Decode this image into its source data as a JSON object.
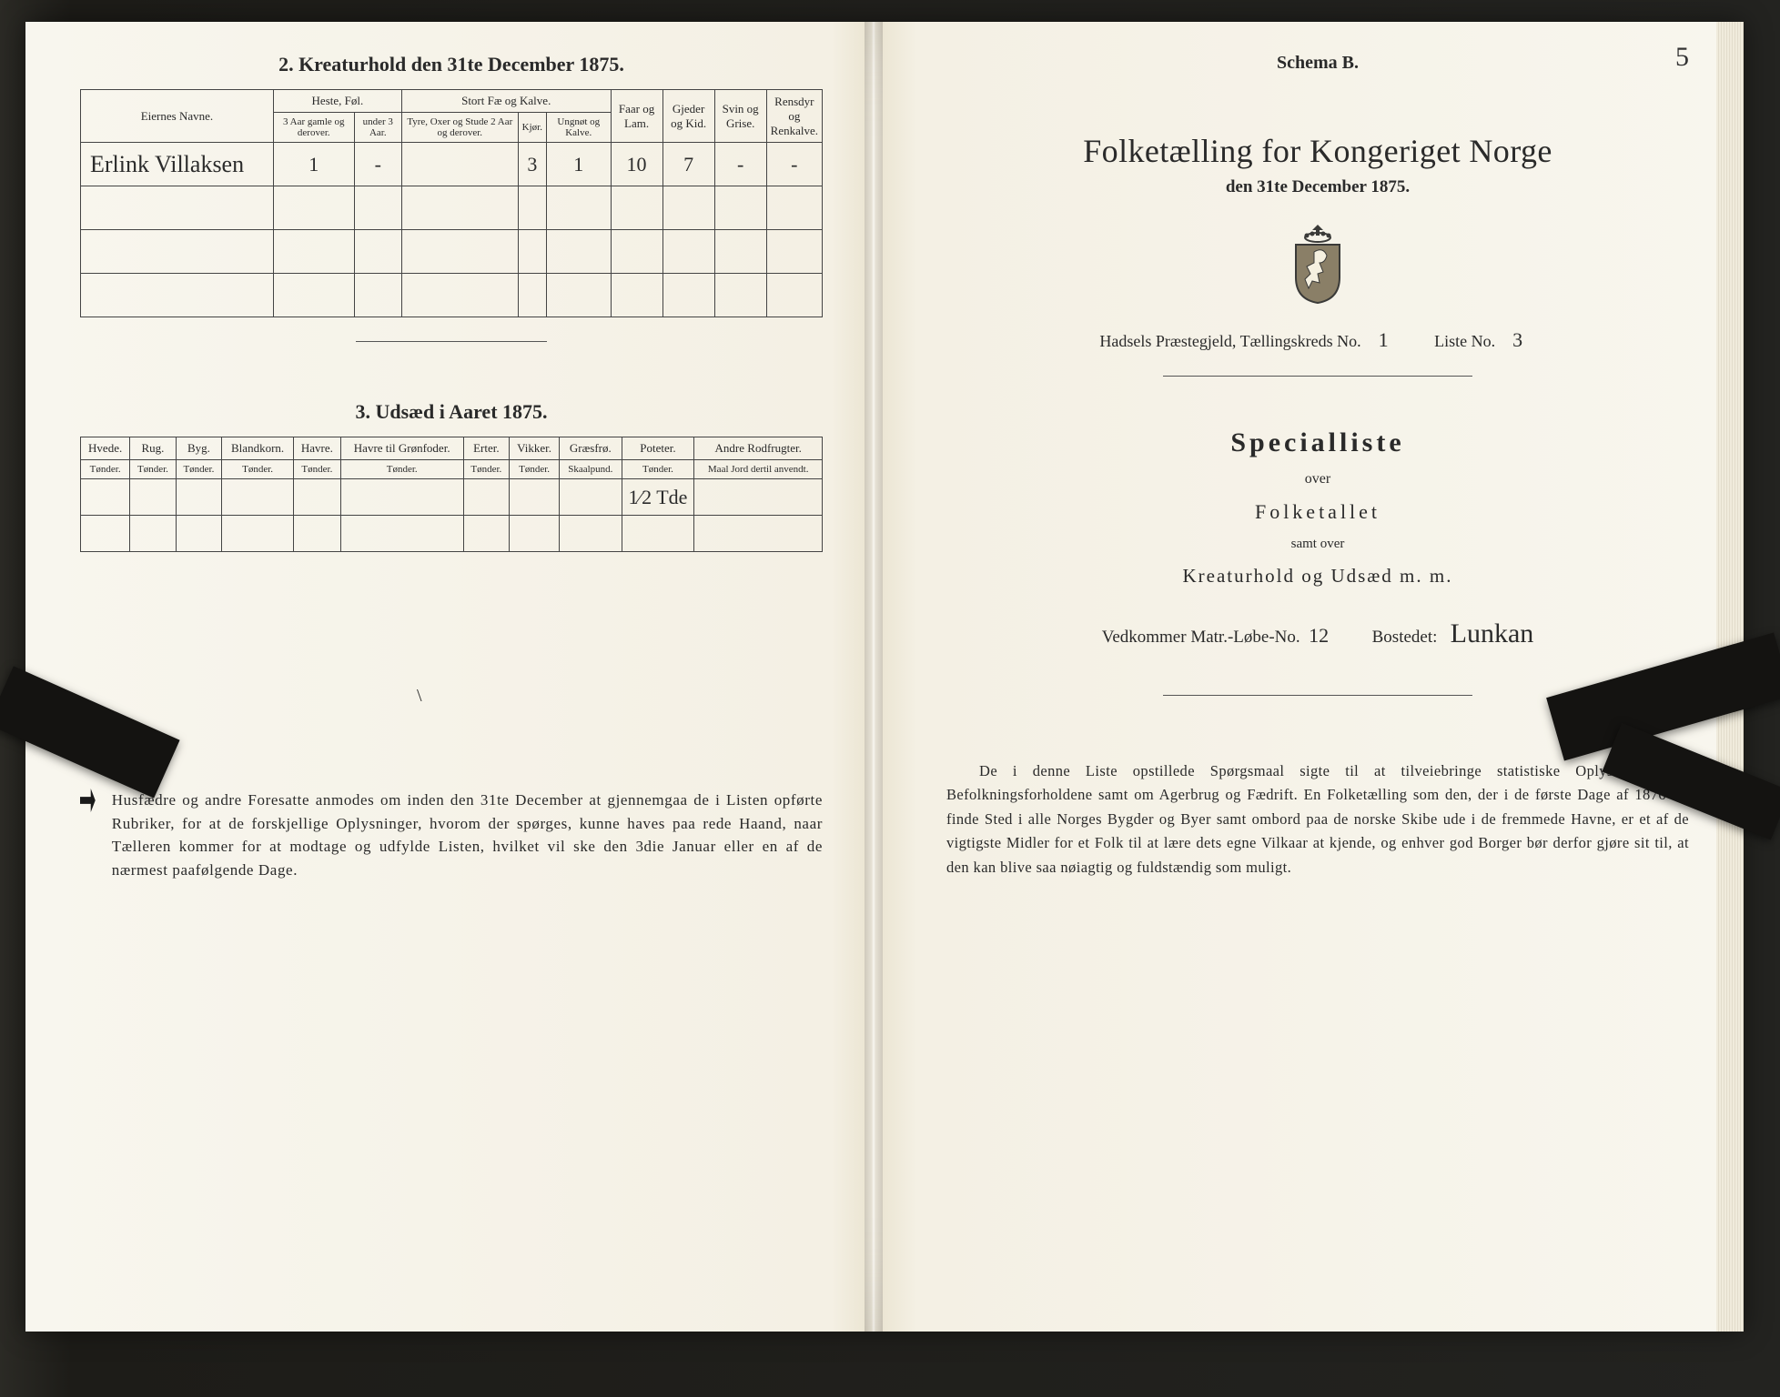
{
  "left": {
    "section2_title": "2.  Kreaturhold den 31te December 1875.",
    "table2": {
      "col_owner": "Eiernes Navne.",
      "grp_heste": "Heste, Føl.",
      "heste_a": "3 Aar gamle og derover.",
      "heste_b": "under 3 Aar.",
      "grp_stort": "Stort Fæ og Kalve.",
      "stort_a": "Tyre, Oxer og Stude 2 Aar og derover.",
      "stort_b": "Kjør.",
      "stort_c": "Ungnøt og Kalve.",
      "faar": "Faar og Lam.",
      "gjeder": "Gjeder og Kid.",
      "svin": "Svin og Grise.",
      "ren": "Rensdyr og Renkalve.",
      "row1": {
        "owner": "Erlink Villaksen",
        "v1": "1",
        "v2": "-",
        "v3": "",
        "v4": "3",
        "v5": "1",
        "v6": "10",
        "v7": "7",
        "v8": "-",
        "v9": "-"
      }
    },
    "section3_title": "3.  Udsæd i Aaret 1875.",
    "table3": {
      "h": [
        "Hvede.",
        "Rug.",
        "Byg.",
        "Blandkorn.",
        "Havre.",
        "Havre til Grønfoder.",
        "Erter.",
        "Vikker.",
        "Græsfrø.",
        "Poteter.",
        "Andre Rodfrugter."
      ],
      "u": [
        "Tønder.",
        "Tønder.",
        "Tønder.",
        "Tønder.",
        "Tønder.",
        "Tønder.",
        "Tønder.",
        "Tønder.",
        "Skaalpund.",
        "Tønder.",
        "Maal Jord dertil anvendt."
      ],
      "poteter_val": "1⁄2 Tde"
    },
    "note": "Husfædre og andre Foresatte anmodes om inden den 31te December at gjennemgaa de i Listen opførte Rubriker, for at de forskjellige Oplysninger, hvorom der spørges, kunne haves paa rede Haand, naar Tælleren kommer for at modtage og udfylde Listen, hvilket vil ske den 3die Januar eller en af de nærmest paafølgende Dage."
  },
  "right": {
    "schema": "Schema B.",
    "folio": "5",
    "title": "Folketælling for Kongeriget Norge",
    "date": "den 31te December 1875.",
    "parish_label": "Hadsels Præstegjeld,  Tællingskreds No.",
    "parish_no": "1",
    "liste_label": "Liste No.",
    "liste_no": "3",
    "special": "Specialliste",
    "over": "over",
    "folketallet": "Folketallet",
    "samt": "samt over",
    "kreat": "Kreaturhold  og  Udsæd  m.  m.",
    "ved_label": "Vedkommer Matr.-Løbe-No.",
    "ved_no": "12",
    "bosted_label": "Bostedet:",
    "bosted_val": "Lunkan",
    "body": "De i denne Liste opstillede Spørgsmaal sigte til at tilveiebringe statistiske Oplysninger om Befolkningsforholdene samt om Agerbrug og Fædrift.  En Folketælling som den, der i de første Dage af 1876 vil finde Sted i alle Norges Bygder og Byer samt ombord paa de norske Skibe ude i de fremmede Havne, er et af de vigtigste Midler for et Folk til at lære dets egne Vilkaar at kjende, og enhver god Borger bør derfor gjøre sit til, at den kan blive saa nøiagtig og fuldstændig som muligt."
  },
  "colors": {
    "paper": "#f8f6ee",
    "ink": "#2a2a2a",
    "border": "#444444"
  }
}
